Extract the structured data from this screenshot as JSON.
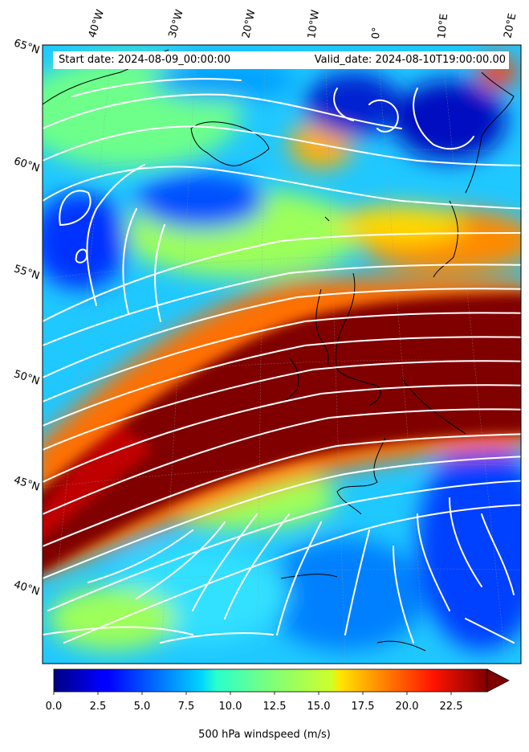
{
  "map": {
    "top_labels": {
      "start": "Start date: 2024-08-09_00:00:00",
      "valid": "Valid_date: 2024-08-10T19:00:00.00"
    },
    "longitude_labels": [
      "40°W",
      "30°W",
      "20°W",
      "10°W",
      "0°",
      "10°E",
      "20°E"
    ],
    "latitude_labels": [
      "65°N",
      "60°N",
      "55°N",
      "50°N",
      "45°N",
      "40°N"
    ],
    "colorbar": {
      "ticks": [
        "0.0",
        "2.5",
        "5.0",
        "7.5",
        "10.0",
        "12.5",
        "15.0",
        "17.5",
        "20.0",
        "22.5"
      ],
      "label": "500 hPa windspeed (m/s)",
      "min": 0,
      "max": 25,
      "extend": "max"
    },
    "colormap": "jet",
    "streamline_color": "#ffffff",
    "coastline_color": "#000000"
  }
}
